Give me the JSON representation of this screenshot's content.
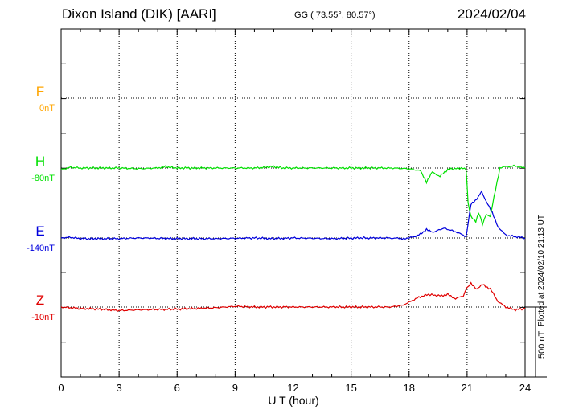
{
  "header": {
    "station": "Dixon Island (DIK)  [AARI]",
    "coords": "GG ( 73.55°,  80.57°)",
    "date": "2024/02/04"
  },
  "footer": {
    "plotted_note": "Plotted at 2024/02/10 21:13 UT",
    "scale_label": "500 nT"
  },
  "chart_data": {
    "type": "line",
    "title": "Dixon Island (DIK)  [AARI]",
    "xlabel": "U T (hour)",
    "ylabel": "",
    "xlim": [
      0,
      24
    ],
    "xticks": [
      "0",
      "3",
      "6",
      "9",
      "12",
      "15",
      "18",
      "21",
      "24"
    ],
    "grid": true,
    "scale_bar_nT": 500,
    "series": [
      {
        "name": "F",
        "baseline": "0nT",
        "color": "#ffa500",
        "x": [],
        "y": []
      },
      {
        "name": "H",
        "baseline": "-80nT",
        "color": "#00e000",
        "x": [
          0,
          0.5,
          1,
          2,
          3,
          4,
          5,
          5.3,
          6,
          8,
          10,
          11,
          11.5,
          13,
          15,
          17,
          18,
          18.6,
          18.9,
          19.2,
          19.6,
          20,
          20.7,
          20.95,
          21.05,
          21.2,
          21.45,
          21.6,
          21.8,
          22,
          22.2,
          22.4,
          22.7,
          23,
          23.5,
          24
        ],
        "y": [
          -10,
          5,
          0,
          0,
          0,
          -5,
          0,
          10,
          0,
          0,
          0,
          10,
          0,
          0,
          0,
          0,
          -5,
          -20,
          -100,
          -30,
          -60,
          -10,
          0,
          -10,
          -250,
          -350,
          -380,
          -320,
          -400,
          -330,
          -350,
          -200,
          0,
          10,
          15,
          0
        ]
      },
      {
        "name": "E",
        "baseline": "-140nT",
        "color": "#0000dd",
        "x": [
          0,
          0.5,
          1,
          2,
          3,
          4,
          6,
          8,
          10,
          11,
          12,
          14,
          15.5,
          17,
          17.8,
          18,
          18.5,
          18.9,
          19.2,
          19.8,
          20.4,
          20.8,
          20.95,
          21.05,
          21.2,
          21.5,
          21.75,
          22,
          22.3,
          22.6,
          23,
          23.5,
          24
        ],
        "y": [
          0,
          5,
          -5,
          -5,
          -5,
          0,
          -5,
          -5,
          0,
          -5,
          0,
          -5,
          0,
          0,
          -5,
          0,
          20,
          60,
          40,
          70,
          45,
          20,
          10,
          100,
          240,
          280,
          330,
          260,
          180,
          80,
          20,
          10,
          0
        ]
      },
      {
        "name": "Z",
        "baseline": "-10nT",
        "color": "#e00000",
        "x": [
          0,
          1,
          2,
          3,
          4,
          6,
          8,
          9,
          10,
          12,
          14,
          16,
          17,
          17.6,
          18,
          18.5,
          19,
          19.6,
          20,
          20.4,
          20.8,
          21,
          21.2,
          21.5,
          21.8,
          22.2,
          22.6,
          23,
          23.5,
          24
        ],
        "y": [
          0,
          -10,
          -15,
          -25,
          -20,
          -15,
          -5,
          5,
          0,
          0,
          0,
          0,
          0,
          10,
          35,
          70,
          90,
          80,
          90,
          60,
          80,
          140,
          170,
          130,
          160,
          130,
          40,
          0,
          -20,
          -10
        ]
      }
    ]
  }
}
